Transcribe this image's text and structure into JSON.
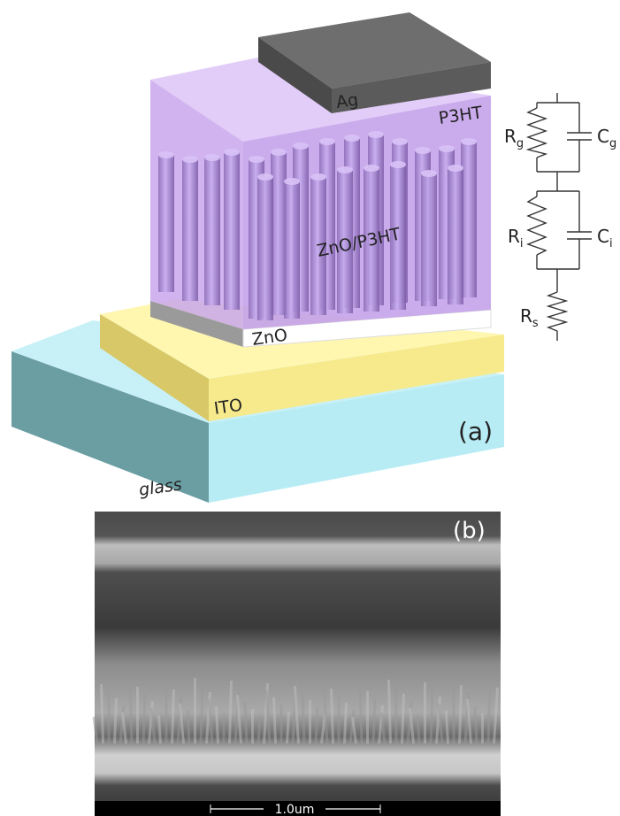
{
  "figure_a": {
    "layers": {
      "ag": "Ag",
      "p3ht": "P3HT",
      "zno_p3ht": "ZnO/P3HT",
      "zno": "ZnO",
      "ito": "ITO",
      "glass": "glass"
    },
    "panel_label": "(a)",
    "circuit": {
      "r_g": {
        "symbol": "R",
        "subscript": "g"
      },
      "c_g": {
        "symbol": "C",
        "subscript": "g"
      },
      "r_i": {
        "symbol": "R",
        "subscript": "i"
      },
      "c_i": {
        "symbol": "C",
        "subscript": "i"
      },
      "r_s": {
        "symbol": "R",
        "subscript": "s"
      }
    }
  },
  "figure_b": {
    "panel_label": "(b)",
    "scale_bar": "1.0um"
  }
}
